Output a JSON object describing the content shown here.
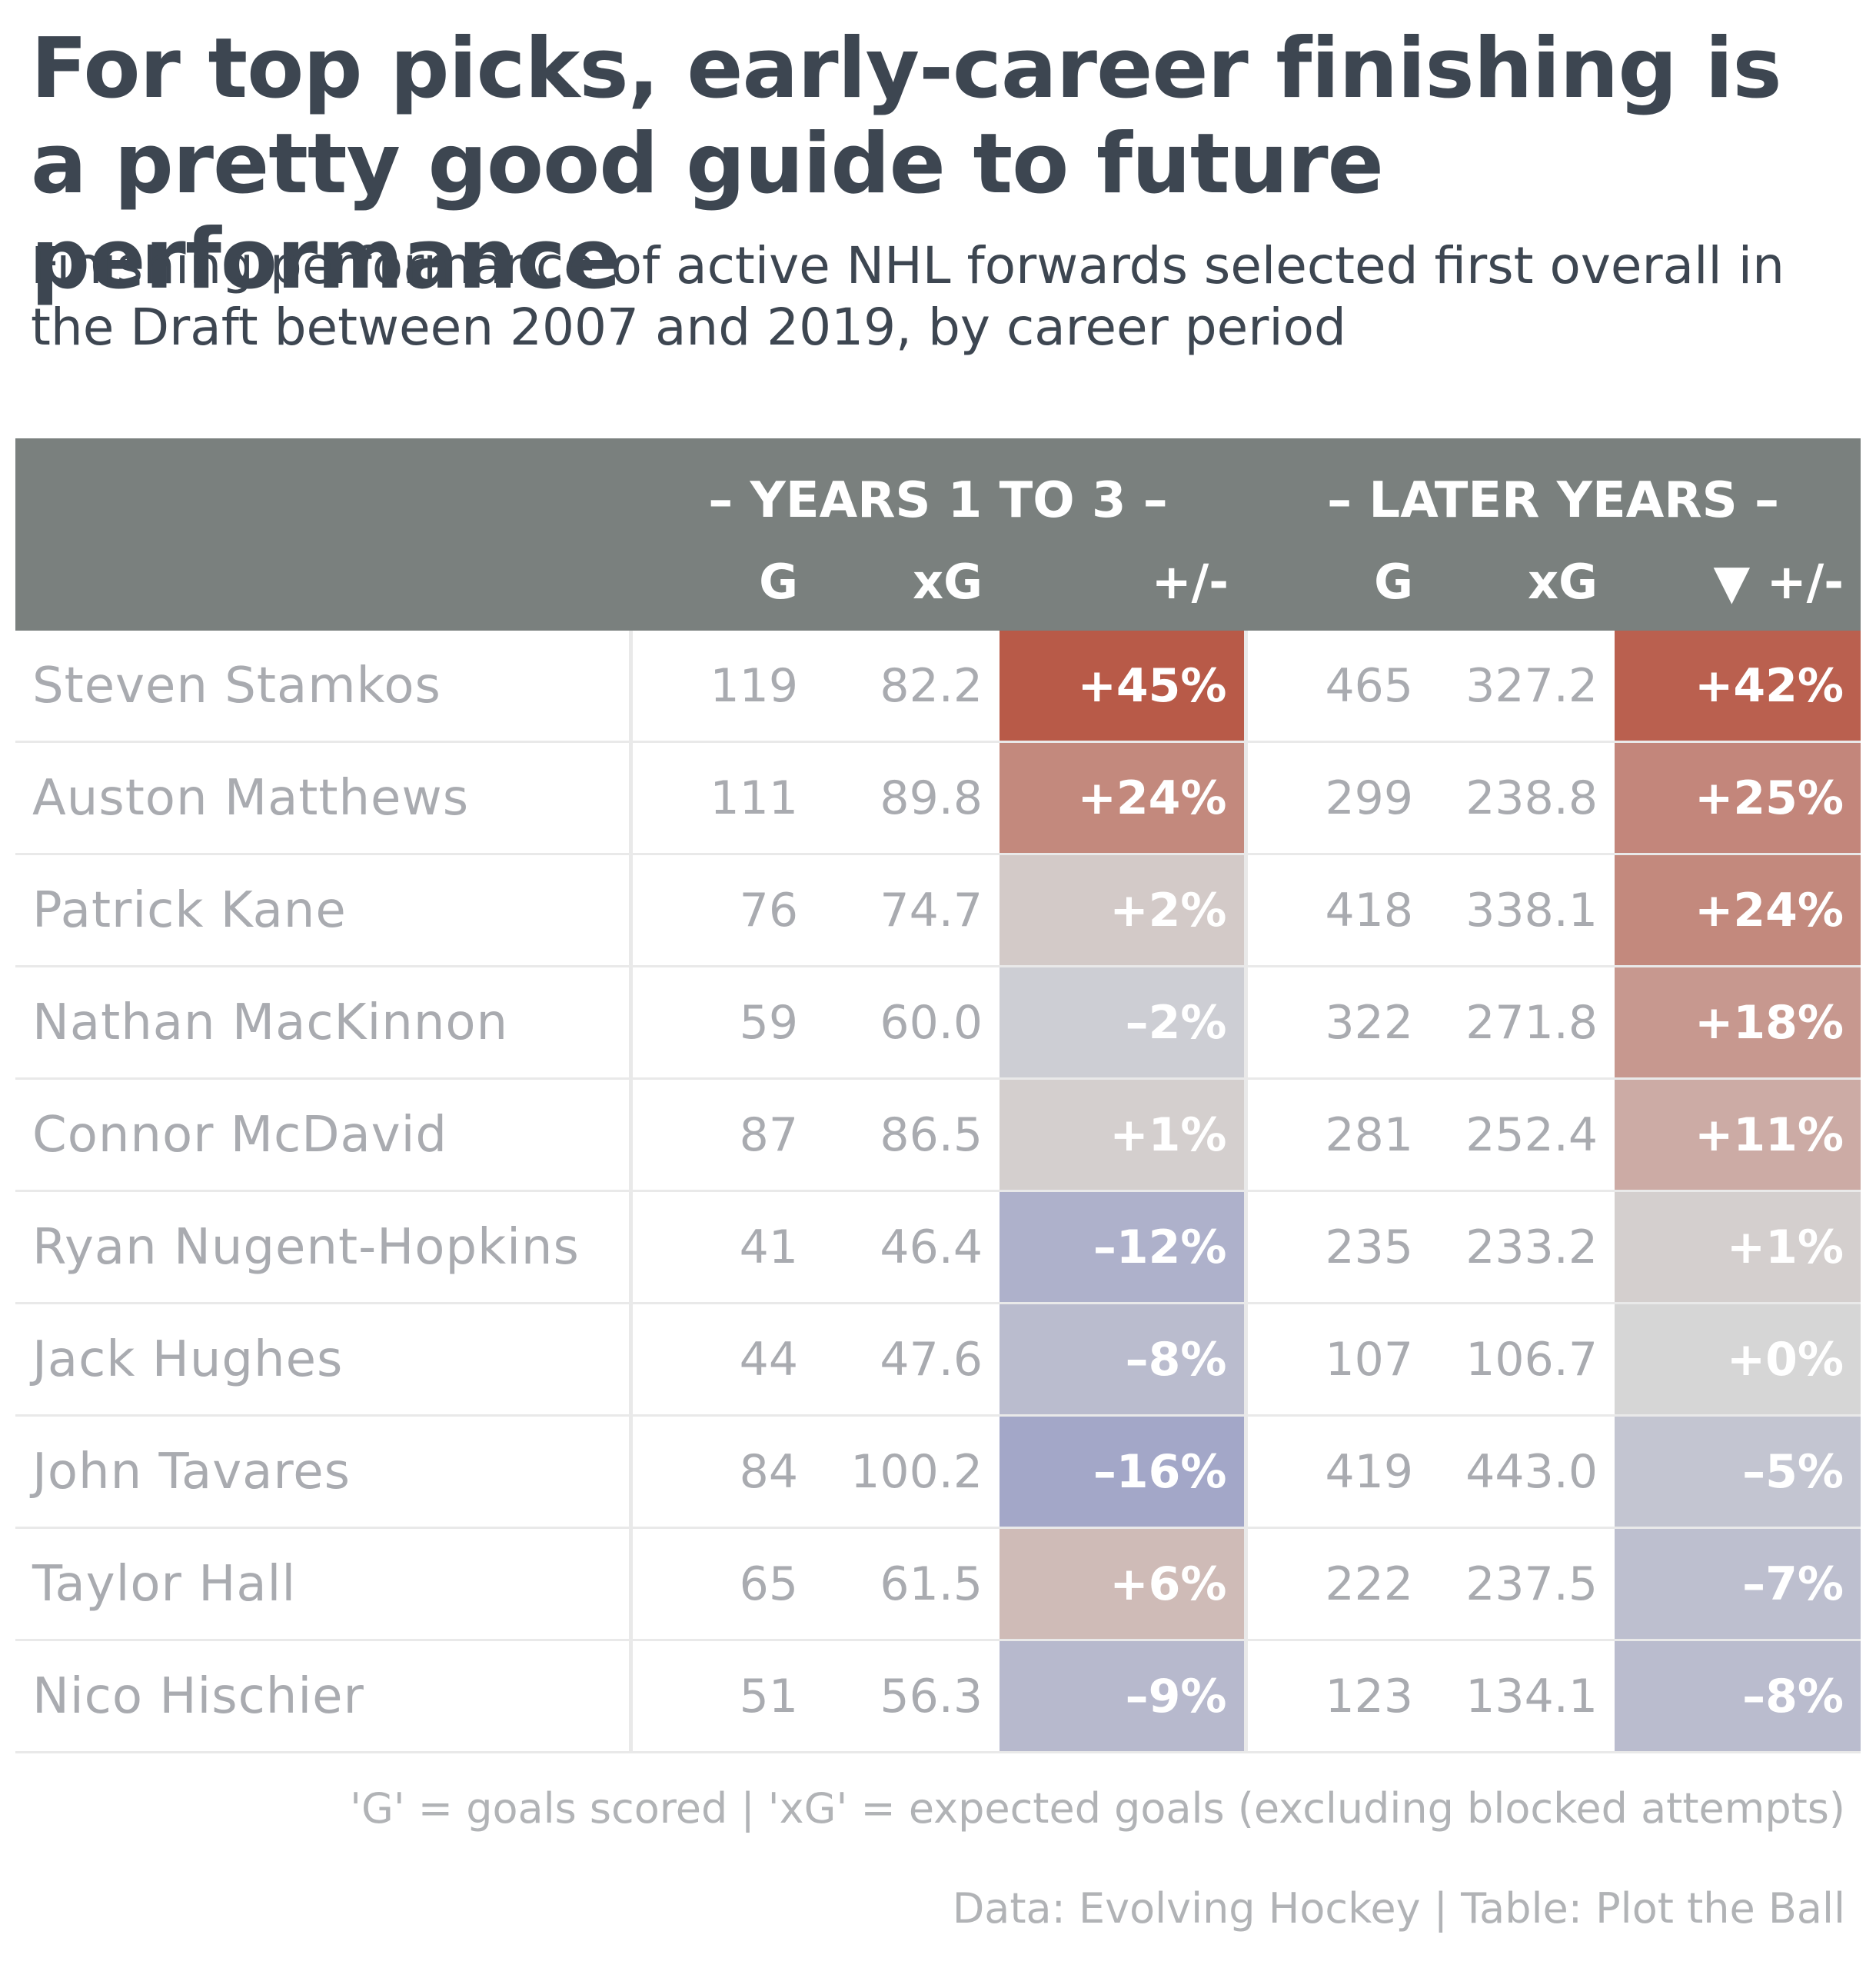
{
  "title": "For top picks, early-career finishing is a pretty good guide to future performance",
  "subtitle": "Finishing performance of active NHL forwards selected first overall in the Draft between 2007 and 2019, by career period",
  "chart_data": {
    "type": "table",
    "column_groups": [
      "– YEARS 1 TO 3 –",
      "– LATER YEARS –"
    ],
    "columns": [
      "G",
      "xG",
      "+/-",
      "G",
      "xG",
      "▼ +/-"
    ],
    "sort_column": "LATER YEARS +/-",
    "sort_order": "descending",
    "rows": [
      {
        "name": "Steven Stamkos",
        "g1": "119",
        "xg1": "82.2",
        "p1": "+45%",
        "g2": "465",
        "xg2": "327.2",
        "p2": "+42%"
      },
      {
        "name": "Auston Matthews",
        "g1": "111",
        "xg1": "89.8",
        "p1": "+24%",
        "g2": "299",
        "xg2": "238.8",
        "p2": "+25%"
      },
      {
        "name": "Patrick Kane",
        "g1": "76",
        "xg1": "74.7",
        "p1": "+2%",
        "g2": "418",
        "xg2": "338.1",
        "p2": "+24%"
      },
      {
        "name": "Nathan MacKinnon",
        "g1": "59",
        "xg1": "60.0",
        "p1": "–2%",
        "g2": "322",
        "xg2": "271.8",
        "p2": "+18%"
      },
      {
        "name": "Connor McDavid",
        "g1": "87",
        "xg1": "86.5",
        "p1": "+1%",
        "g2": "281",
        "xg2": "252.4",
        "p2": "+11%"
      },
      {
        "name": "Ryan Nugent-Hopkins",
        "g1": "41",
        "xg1": "46.4",
        "p1": "–12%",
        "g2": "235",
        "xg2": "233.2",
        "p2": "+1%"
      },
      {
        "name": "Jack Hughes",
        "g1": "44",
        "xg1": "47.6",
        "p1": "–8%",
        "g2": "107",
        "xg2": "106.7",
        "p2": "+0%"
      },
      {
        "name": "John Tavares",
        "g1": "84",
        "xg1": "100.2",
        "p1": "–16%",
        "g2": "419",
        "xg2": "443.0",
        "p2": "–5%"
      },
      {
        "name": "Taylor Hall",
        "g1": "65",
        "xg1": "61.5",
        "p1": "+6%",
        "g2": "222",
        "xg2": "237.5",
        "p2": "–7%"
      },
      {
        "name": "Nico Hischier",
        "g1": "51",
        "xg1": "56.3",
        "p1": "–9%",
        "g2": "123",
        "xg2": "134.1",
        "p2": "–8%"
      }
    ],
    "color_scale": {
      "positive": "#b85a48",
      "neutral": "#d6d6d6",
      "negative": "#a3a7c8",
      "range": [
        -16,
        45
      ]
    }
  },
  "notes": {
    "definition": "'G' = goals scored | 'xG' = expected goals (excluding blocked attempts)",
    "source": "Data: Evolving Hockey | Table: Plot the Ball"
  }
}
